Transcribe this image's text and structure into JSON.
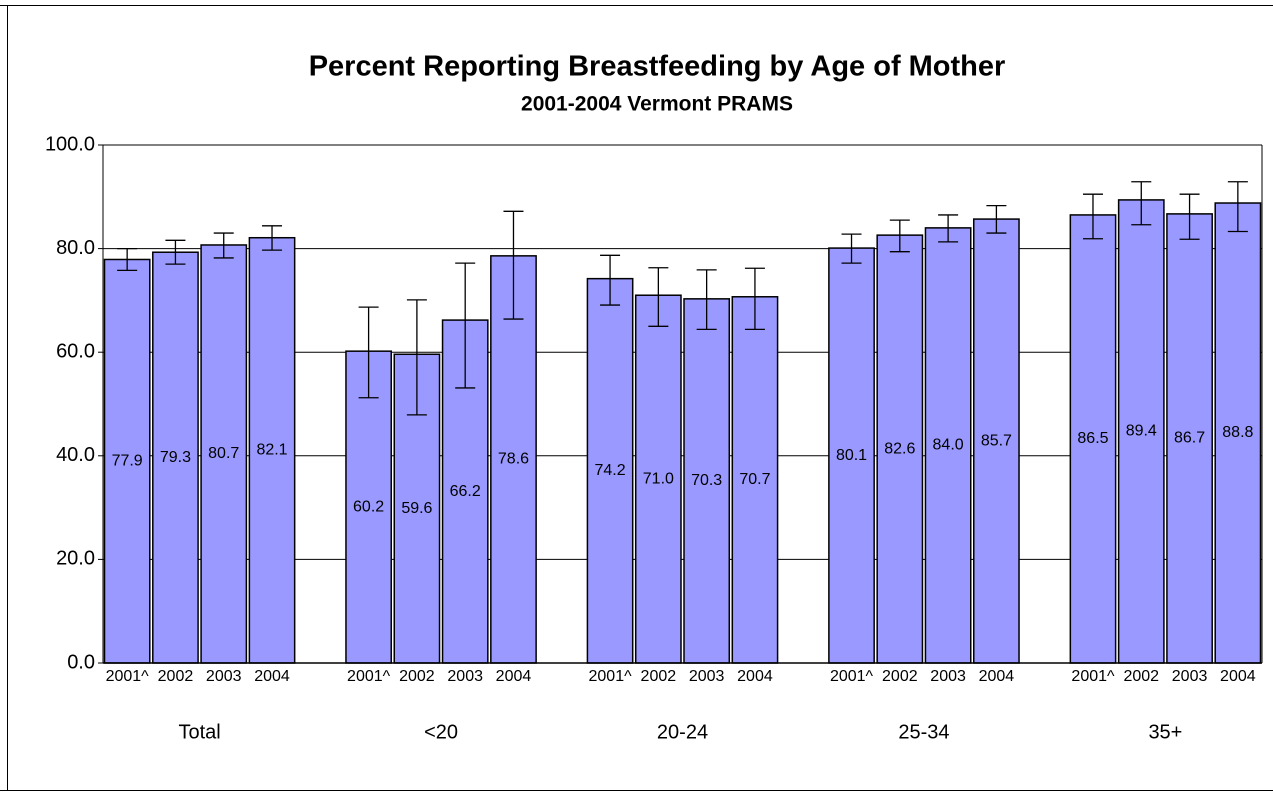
{
  "chart_data": {
    "type": "bar",
    "title": "Percent Reporting Breastfeeding by Age of Mother",
    "subtitle": "2001-2004 Vermont PRAMS",
    "color": "#9999ff",
    "ylim": [
      0,
      100
    ],
    "yticks": [
      {
        "value": 0,
        "label": "0.0"
      },
      {
        "value": 20,
        "label": "20.0"
      },
      {
        "value": 40,
        "label": "40.0"
      },
      {
        "value": 60,
        "label": "60.0"
      },
      {
        "value": 80,
        "label": "80.0"
      },
      {
        "value": 100,
        "label": "100.0"
      }
    ],
    "grid": true,
    "groups": [
      {
        "name": "Total",
        "categories": [
          "2001^",
          "2002",
          "2003",
          "2004"
        ],
        "values": [
          77.9,
          79.3,
          80.7,
          82.1
        ],
        "value_labels": [
          "77.9",
          "79.3",
          "80.7",
          "82.1"
        ],
        "ci_low": [
          75.8,
          77.0,
          78.2,
          79.7
        ],
        "ci_high": [
          80.0,
          81.6,
          83.0,
          84.4
        ]
      },
      {
        "name": "<20",
        "categories": [
          "2001^",
          "2002",
          "2003",
          "2004"
        ],
        "values": [
          60.2,
          59.6,
          66.2,
          78.6
        ],
        "value_labels": [
          "60.2",
          "59.6",
          "66.2",
          "78.6"
        ],
        "ci_low": [
          51.2,
          47.9,
          53.1,
          66.4
        ],
        "ci_high": [
          68.7,
          70.1,
          77.2,
          87.2
        ]
      },
      {
        "name": "20-24",
        "categories": [
          "2001^",
          "2002",
          "2003",
          "2004"
        ],
        "values": [
          74.2,
          71.0,
          70.3,
          70.7
        ],
        "value_labels": [
          "74.2",
          "71.0",
          "70.3",
          "70.7"
        ],
        "ci_low": [
          69.1,
          65.0,
          64.4,
          64.4
        ],
        "ci_high": [
          78.7,
          76.3,
          75.9,
          76.2
        ]
      },
      {
        "name": "25-34",
        "categories": [
          "2001^",
          "2002",
          "2003",
          "2004"
        ],
        "values": [
          80.1,
          82.6,
          84.0,
          85.7
        ],
        "value_labels": [
          "80.1",
          "82.6",
          "84.0",
          "85.7"
        ],
        "ci_low": [
          77.2,
          79.4,
          81.3,
          83.0
        ],
        "ci_high": [
          82.8,
          85.5,
          86.5,
          88.3
        ]
      },
      {
        "name": "35+",
        "categories": [
          "2001^",
          "2002",
          "2003",
          "2004"
        ],
        "values": [
          86.5,
          89.4,
          86.7,
          88.8
        ],
        "value_labels": [
          "86.5",
          "89.4",
          "86.7",
          "88.8"
        ],
        "ci_low": [
          81.9,
          84.6,
          81.8,
          83.3
        ],
        "ci_high": [
          90.5,
          92.9,
          90.5,
          92.9
        ]
      }
    ]
  }
}
